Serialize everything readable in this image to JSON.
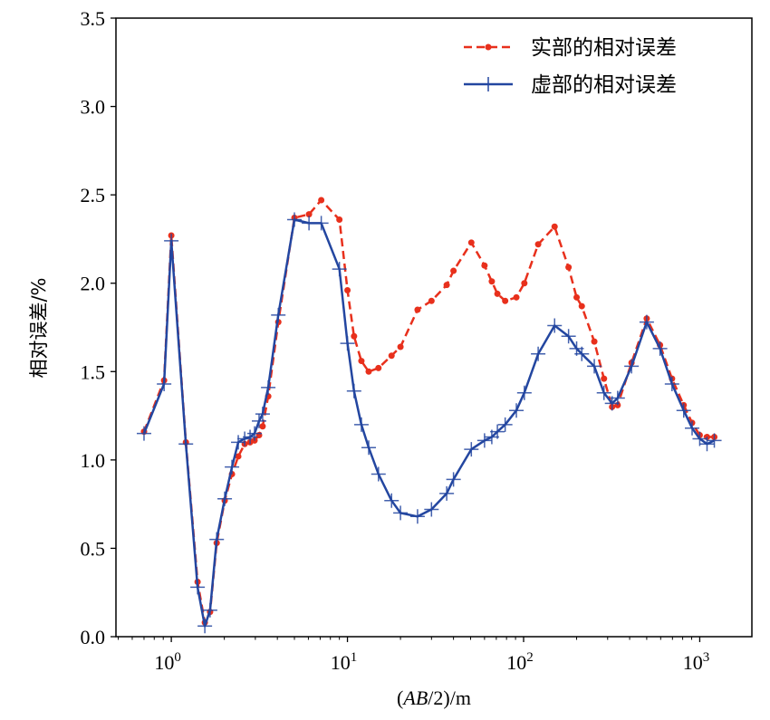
{
  "chart_data": {
    "type": "line",
    "title": "",
    "xlabel": "(AB/2)/m",
    "xlabel_parts": [
      "(",
      "AB",
      "/2)/m"
    ],
    "ylabel": "相对误差/%",
    "xscale": "log",
    "xlim": [
      0.485,
      1977
    ],
    "ylim": [
      0,
      3.5
    ],
    "grid": false,
    "legend_position": "top-right",
    "yticks": [
      0.0,
      0.5,
      1.0,
      1.5,
      2.0,
      2.5,
      3.0,
      3.5
    ],
    "ytick_labels": [
      "0.0",
      "0.5",
      "1.0",
      "1.5",
      "2.0",
      "2.5",
      "3.0",
      "3.5"
    ],
    "xticks": [
      1,
      10,
      100,
      1000
    ],
    "xtick_labels": [
      {
        "base": "10",
        "exp": "0"
      },
      {
        "base": "10",
        "exp": "1"
      },
      {
        "base": "10",
        "exp": "2"
      },
      {
        "base": "10",
        "exp": "3"
      }
    ],
    "x": [
      0.7,
      0.91,
      1.0,
      1.21,
      1.41,
      1.55,
      1.66,
      1.81,
      2.01,
      2.21,
      2.4,
      2.61,
      2.8,
      2.97,
      3.15,
      3.3,
      3.55,
      4.05,
      5.0,
      6.05,
      7.1,
      9.0,
      10.0,
      10.9,
      12.0,
      13.2,
      15.0,
      17.8,
      20.0,
      25.0,
      30.0,
      36.6,
      40.0,
      50.5,
      60.0,
      66.0,
      71.0,
      78.6,
      91.0,
      101,
      121,
      150,
      180,
      200,
      214,
      252,
      286,
      318,
      342,
      410,
      500,
      595,
      696,
      811,
      905,
      1000,
      1100,
      1210
    ],
    "series": [
      {
        "name": "实部的相对误差",
        "color": "#e8301c",
        "style": "dashed",
        "marker": "dot",
        "values": [
          1.16,
          1.45,
          2.27,
          1.1,
          0.31,
          0.08,
          0.14,
          0.53,
          0.77,
          0.92,
          1.02,
          1.09,
          1.1,
          1.11,
          1.14,
          1.19,
          1.36,
          1.78,
          2.37,
          2.39,
          2.47,
          2.36,
          1.96,
          1.7,
          1.56,
          1.5,
          1.52,
          1.59,
          1.64,
          1.85,
          1.9,
          1.99,
          2.07,
          2.23,
          2.1,
          2.01,
          1.94,
          1.9,
          1.92,
          2.0,
          2.22,
          2.32,
          2.09,
          1.92,
          1.87,
          1.67,
          1.46,
          1.3,
          1.31,
          1.55,
          1.8,
          1.65,
          1.46,
          1.31,
          1.21,
          1.14,
          1.13,
          1.13
        ]
      },
      {
        "name": "虚部的相对误差",
        "color": "#2346a0",
        "style": "solid",
        "marker": "plus",
        "values": [
          1.15,
          1.43,
          2.24,
          1.09,
          0.28,
          0.06,
          0.15,
          0.55,
          0.78,
          0.96,
          1.1,
          1.12,
          1.13,
          1.15,
          1.22,
          1.26,
          1.41,
          1.82,
          2.36,
          2.34,
          2.34,
          2.08,
          1.66,
          1.39,
          1.2,
          1.07,
          0.92,
          0.77,
          0.7,
          0.68,
          0.72,
          0.81,
          0.89,
          1.06,
          1.11,
          1.13,
          1.16,
          1.2,
          1.28,
          1.38,
          1.6,
          1.76,
          1.7,
          1.63,
          1.6,
          1.53,
          1.38,
          1.32,
          1.35,
          1.53,
          1.78,
          1.63,
          1.43,
          1.28,
          1.18,
          1.12,
          1.09,
          1.11
        ]
      }
    ]
  }
}
